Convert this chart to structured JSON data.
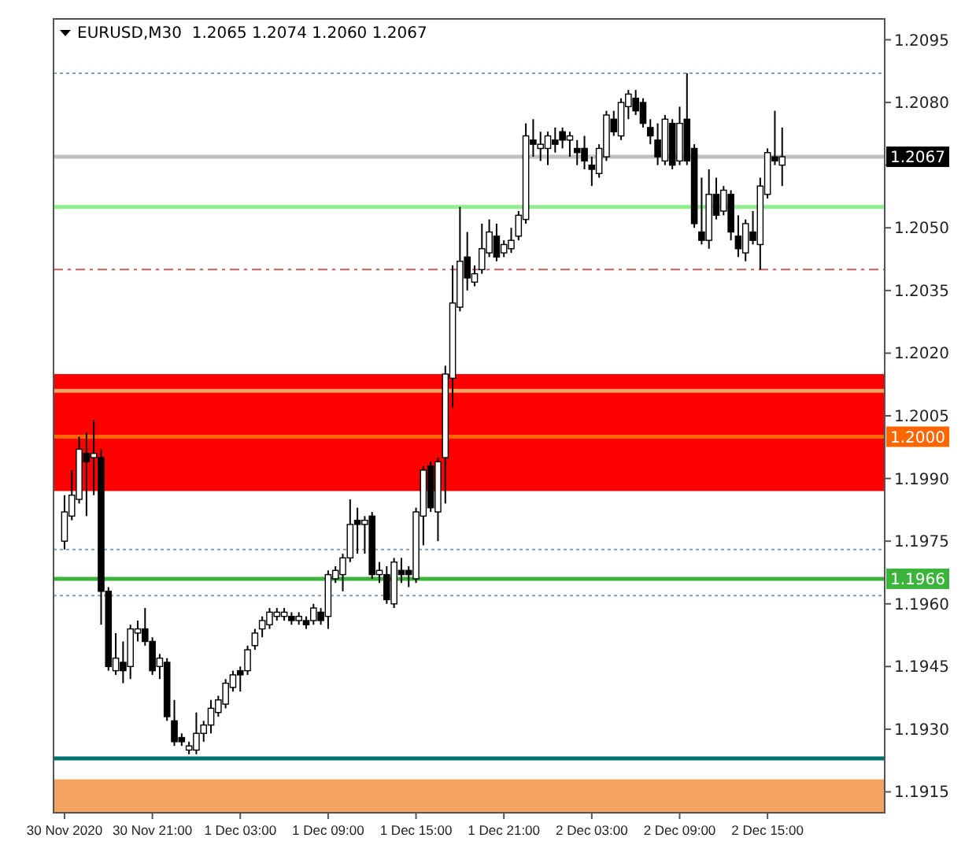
{
  "chart_data": {
    "type": "candlestick",
    "title": "EURUSD,M30  1.2065 1.2074 1.2060 1.2067",
    "x": [
      "2020-11-30T15:00",
      "2020-11-30T15:30",
      "2020-11-30T16:00",
      "2020-11-30T16:30",
      "2020-11-30T17:00",
      "2020-11-30T17:30",
      "2020-11-30T18:00",
      "2020-11-30T18:30",
      "2020-11-30T19:00",
      "2020-11-30T19:30",
      "2020-11-30T20:00",
      "2020-11-30T20:30",
      "2020-11-30T21:00",
      "2020-11-30T21:30",
      "2020-11-30T22:00",
      "2020-11-30T22:30",
      "2020-11-30T23:00",
      "2020-11-30T23:30",
      "2020-12-01T00:00",
      "2020-12-01T00:30",
      "2020-12-01T01:00",
      "2020-12-01T01:30",
      "2020-12-01T02:00",
      "2020-12-01T02:30",
      "2020-12-01T03:00",
      "2020-12-01T03:30",
      "2020-12-01T04:00",
      "2020-12-01T04:30",
      "2020-12-01T05:00",
      "2020-12-01T05:30",
      "2020-12-01T06:00",
      "2020-12-01T06:30",
      "2020-12-01T07:00",
      "2020-12-01T07:30",
      "2020-12-01T08:00",
      "2020-12-01T08:30",
      "2020-12-01T09:00",
      "2020-12-01T09:30",
      "2020-12-01T10:00",
      "2020-12-01T10:30",
      "2020-12-01T11:00",
      "2020-12-01T11:30",
      "2020-12-01T12:00",
      "2020-12-01T12:30",
      "2020-12-01T13:00",
      "2020-12-01T13:30",
      "2020-12-01T14:00",
      "2020-12-01T14:30",
      "2020-12-01T15:00",
      "2020-12-01T15:30",
      "2020-12-01T16:00",
      "2020-12-01T16:30",
      "2020-12-01T17:00",
      "2020-12-01T17:30",
      "2020-12-01T18:00",
      "2020-12-01T18:30",
      "2020-12-01T19:00",
      "2020-12-01T19:30",
      "2020-12-01T20:00",
      "2020-12-01T20:30",
      "2020-12-01T21:00",
      "2020-12-01T21:30",
      "2020-12-01T22:00",
      "2020-12-01T22:30",
      "2020-12-01T23:00",
      "2020-12-01T23:30",
      "2020-12-02T00:00",
      "2020-12-02T00:30",
      "2020-12-02T01:00",
      "2020-12-02T01:30",
      "2020-12-02T02:00",
      "2020-12-02T02:30",
      "2020-12-02T03:00",
      "2020-12-02T03:30",
      "2020-12-02T04:00",
      "2020-12-02T04:30",
      "2020-12-02T05:00",
      "2020-12-02T05:30",
      "2020-12-02T06:00",
      "2020-12-02T06:30",
      "2020-12-02T07:00",
      "2020-12-02T07:30",
      "2020-12-02T08:00",
      "2020-12-02T08:30",
      "2020-12-02T09:00",
      "2020-12-02T09:30",
      "2020-12-02T10:00",
      "2020-12-02T10:30",
      "2020-12-02T11:00",
      "2020-12-02T11:30",
      "2020-12-02T12:00",
      "2020-12-02T12:30",
      "2020-12-02T13:00",
      "2020-12-02T13:30",
      "2020-12-02T14:00",
      "2020-12-02T14:30",
      "2020-12-02T15:00",
      "2020-12-02T15:30",
      "2020-12-02T16:00"
    ],
    "ohlc": [
      [
        1.1975,
        1.1986,
        1.1973,
        1.1982
      ],
      [
        1.1981,
        1.1992,
        1.198,
        1.1986
      ],
      [
        1.1985,
        1.2,
        1.1984,
        1.1997
      ],
      [
        1.1996,
        1.2001,
        1.1981,
        1.1994
      ],
      [
        1.1995,
        1.2004,
        1.1986,
        1.1996
      ],
      [
        1.1995,
        1.1997,
        1.1955,
        1.1963
      ],
      [
        1.1963,
        1.1964,
        1.1944,
        1.1945
      ],
      [
        1.1944,
        1.1953,
        1.1943,
        1.1947
      ],
      [
        1.1946,
        1.1951,
        1.1941,
        1.1944
      ],
      [
        1.1945,
        1.1955,
        1.1942,
        1.1954
      ],
      [
        1.1953,
        1.1956,
        1.1951,
        1.1954
      ],
      [
        1.1954,
        1.1959,
        1.195,
        1.1951
      ],
      [
        1.1951,
        1.1952,
        1.1943,
        1.1944
      ],
      [
        1.1945,
        1.1948,
        1.1942,
        1.1947
      ],
      [
        1.1946,
        1.1947,
        1.1932,
        1.1933
      ],
      [
        1.1932,
        1.1937,
        1.1926,
        1.1927
      ],
      [
        1.1928,
        1.1929,
        1.1926,
        1.1927
      ],
      [
        1.1925,
        1.1927,
        1.1924,
        1.1926
      ],
      [
        1.1925,
        1.1934,
        1.1924,
        1.1929
      ],
      [
        1.1929,
        1.1932,
        1.1927,
        1.1931
      ],
      [
        1.1931,
        1.1937,
        1.1929,
        1.1935
      ],
      [
        1.1934,
        1.1938,
        1.1933,
        1.1937
      ],
      [
        1.1936,
        1.1942,
        1.1935,
        1.1941
      ],
      [
        1.194,
        1.1944,
        1.1939,
        1.1943
      ],
      [
        1.1944,
        1.1945,
        1.1939,
        1.1943
      ],
      [
        1.1944,
        1.195,
        1.1943,
        1.1949
      ],
      [
        1.195,
        1.1954,
        1.1949,
        1.1953
      ],
      [
        1.1954,
        1.1957,
        1.1952,
        1.1956
      ],
      [
        1.1955,
        1.1959,
        1.1954,
        1.1958
      ],
      [
        1.1957,
        1.1959,
        1.1956,
        1.1958
      ],
      [
        1.1957,
        1.1959,
        1.1956,
        1.1958
      ],
      [
        1.1957,
        1.1958,
        1.1955,
        1.1956
      ],
      [
        1.1956,
        1.1958,
        1.1955,
        1.1957
      ],
      [
        1.1956,
        1.1957,
        1.1954,
        1.1955
      ],
      [
        1.1956,
        1.196,
        1.1955,
        1.1959
      ],
      [
        1.1958,
        1.1959,
        1.1955,
        1.1956
      ],
      [
        1.1957,
        1.1968,
        1.1954,
        1.1967
      ],
      [
        1.1966,
        1.1969,
        1.1965,
        1.1968
      ],
      [
        1.1967,
        1.1972,
        1.1963,
        1.1971
      ],
      [
        1.1971,
        1.1985,
        1.197,
        1.1979
      ],
      [
        1.198,
        1.1983,
        1.1972,
        1.1979
      ],
      [
        1.1979,
        1.1981,
        1.1972,
        1.198
      ],
      [
        1.1981,
        1.1982,
        1.1966,
        1.1967
      ],
      [
        1.1967,
        1.197,
        1.1965,
        1.1968
      ],
      [
        1.1967,
        1.1969,
        1.196,
        1.1961
      ],
      [
        1.196,
        1.1971,
        1.1959,
        1.197
      ],
      [
        1.1968,
        1.1971,
        1.1965,
        1.1967
      ],
      [
        1.1968,
        1.1969,
        1.1964,
        1.1967
      ],
      [
        1.1966,
        1.1983,
        1.1965,
        1.1982
      ],
      [
        1.1981,
        1.1993,
        1.1974,
        1.1992
      ],
      [
        1.1993,
        1.1994,
        1.1982,
        1.1983
      ],
      [
        1.1982,
        1.1995,
        1.1975,
        1.1994
      ],
      [
        1.1995,
        1.2017,
        1.1984,
        1.2015
      ],
      [
        1.2014,
        1.2041,
        1.2007,
        1.2032
      ],
      [
        1.2031,
        1.2055,
        1.203,
        1.2042
      ],
      [
        1.2043,
        1.2049,
        1.2035,
        1.2038
      ],
      [
        1.2037,
        1.2041,
        1.2036,
        1.2039
      ],
      [
        1.204,
        1.2051,
        1.2039,
        1.2045
      ],
      [
        1.2044,
        1.2052,
        1.2043,
        1.2049
      ],
      [
        1.2048,
        1.2051,
        1.2042,
        1.2043
      ],
      [
        1.2044,
        1.2047,
        1.2043,
        1.2046
      ],
      [
        1.2045,
        1.205,
        1.2044,
        1.2047
      ],
      [
        1.2048,
        1.2054,
        1.2047,
        1.2053
      ],
      [
        1.2052,
        1.2075,
        1.2051,
        1.2072
      ],
      [
        1.2071,
        1.2076,
        1.2067,
        1.207
      ],
      [
        1.2069,
        1.2073,
        1.2066,
        1.207
      ],
      [
        1.2069,
        1.2073,
        1.2065,
        1.2072
      ],
      [
        1.2071,
        1.2074,
        1.2068,
        1.207
      ],
      [
        1.2073,
        1.2074,
        1.2069,
        1.2071
      ],
      [
        1.2071,
        1.2073,
        1.2067,
        1.2072
      ],
      [
        1.2069,
        1.2071,
        1.2065,
        1.2068
      ],
      [
        1.2069,
        1.2072,
        1.2064,
        1.2066
      ],
      [
        1.2065,
        1.2067,
        1.206,
        1.2064
      ],
      [
        1.2063,
        1.207,
        1.2062,
        1.2069
      ],
      [
        1.2067,
        1.2078,
        1.2066,
        1.2077
      ],
      [
        1.2076,
        1.2078,
        1.2072,
        1.2073
      ],
      [
        1.2072,
        1.2081,
        1.2071,
        1.208
      ],
      [
        1.2079,
        1.2083,
        1.2076,
        1.2082
      ],
      [
        1.2081,
        1.2083,
        1.2077,
        1.2078
      ],
      [
        1.208,
        1.2081,
        1.2074,
        1.2075
      ],
      [
        1.2074,
        1.2076,
        1.207,
        1.2072
      ],
      [
        1.2071,
        1.2075,
        1.2065,
        1.2067
      ],
      [
        1.2066,
        1.2077,
        1.2065,
        1.2076
      ],
      [
        1.2075,
        1.2076,
        1.2064,
        1.2065
      ],
      [
        1.2066,
        1.2079,
        1.2065,
        1.2075
      ],
      [
        1.2076,
        1.2087,
        1.2065,
        1.2066
      ],
      [
        1.2069,
        1.207,
        1.205,
        1.2051
      ],
      [
        1.2049,
        1.2062,
        1.2046,
        1.2047
      ],
      [
        1.2047,
        1.2064,
        1.2045,
        1.2058
      ],
      [
        1.2058,
        1.2062,
        1.2052,
        1.2053
      ],
      [
        1.2054,
        1.206,
        1.2053,
        1.2059
      ],
      [
        1.2058,
        1.2059,
        1.2047,
        1.2049
      ],
      [
        1.2048,
        1.2053,
        1.2043,
        1.2045
      ],
      [
        1.2044,
        1.2052,
        1.2042,
        1.2051
      ],
      [
        1.2049,
        1.2054,
        1.2046,
        1.2047
      ],
      [
        1.2046,
        1.2062,
        1.204,
        1.206
      ],
      [
        1.2058,
        1.2069,
        1.2057,
        1.2068
      ],
      [
        1.2067,
        1.2078,
        1.2065,
        1.2066
      ],
      [
        1.2065,
        1.2074,
        1.206,
        1.2067
      ]
    ],
    "xlim": [
      "2020-11-30T14:15",
      "2020-12-02T23:00"
    ],
    "xticks": [
      {
        "value": "2020-11-30T15:00",
        "label": "30 Nov 2020"
      },
      {
        "value": "2020-11-30T21:00",
        "label": "30 Nov 21:00"
      },
      {
        "value": "2020-12-01T03:00",
        "label": "1 Dec 03:00"
      },
      {
        "value": "2020-12-01T09:00",
        "label": "1 Dec 09:00"
      },
      {
        "value": "2020-12-01T15:00",
        "label": "1 Dec 15:00"
      },
      {
        "value": "2020-12-01T21:00",
        "label": "1 Dec 21:00"
      },
      {
        "value": "2020-12-02T03:00",
        "label": "2 Dec 03:00"
      },
      {
        "value": "2020-12-02T09:00",
        "label": "2 Dec 09:00"
      },
      {
        "value": "2020-12-02T15:00",
        "label": "2 Dec 15:00"
      }
    ],
    "ylim": [
      1.191,
      1.21
    ],
    "yticks": [
      1.2095,
      {
        "value": 1.208,
        "label": "1.2080"
      },
      {
        "value": 1.2065,
        "label": null
      },
      {
        "value": 1.205,
        "label": "1.2050"
      },
      1.2035,
      {
        "value": 1.202,
        "label": "1.2020"
      },
      1.2005,
      {
        "value": 1.199,
        "label": "1.1990"
      },
      1.1975,
      {
        "value": 1.196,
        "label": "1.1960"
      },
      1.1945,
      {
        "value": 1.193,
        "label": "1.1930"
      },
      1.1915
    ],
    "bands": [
      {
        "axis": "y",
        "from": 1.1987,
        "to": 1.2015,
        "color": "#ff0000"
      },
      {
        "axis": "y",
        "from": 1.191,
        "to": 1.1918,
        "color": "#f4a460"
      }
    ],
    "ref_lines": [
      {
        "axis": "y",
        "value": 1.2087,
        "color": "#7f9fbf",
        "line_style": "dotted"
      },
      {
        "axis": "y",
        "value": 1.2067,
        "color": "#c0c0c0",
        "line_style": "solid",
        "label": "1.2067"
      },
      {
        "axis": "y",
        "value": 1.2055,
        "color": "#90ee90",
        "line_style": "solid"
      },
      {
        "axis": "y",
        "value": 1.204,
        "color": "#cd5c5c",
        "line_style": "dashed"
      },
      {
        "axis": "y",
        "value": 1.2011,
        "color": "#f4a460",
        "line_style": "solid"
      },
      {
        "axis": "y",
        "value": 1.2,
        "color": "#ff6600",
        "line_style": "solid",
        "label": "1.2000"
      },
      {
        "axis": "y",
        "value": 1.1973,
        "color": "#7f9fbf",
        "line_style": "dotted"
      },
      {
        "axis": "y",
        "value": 1.1966,
        "color": "#3cb43c",
        "line_style": "solid",
        "label": "1.1966"
      },
      {
        "axis": "y",
        "value": 1.1962,
        "color": "#7f9fbf",
        "line_style": "dotted"
      },
      {
        "axis": "y",
        "value": 1.1923,
        "color": "#007070",
        "line_style": "solid"
      }
    ]
  }
}
